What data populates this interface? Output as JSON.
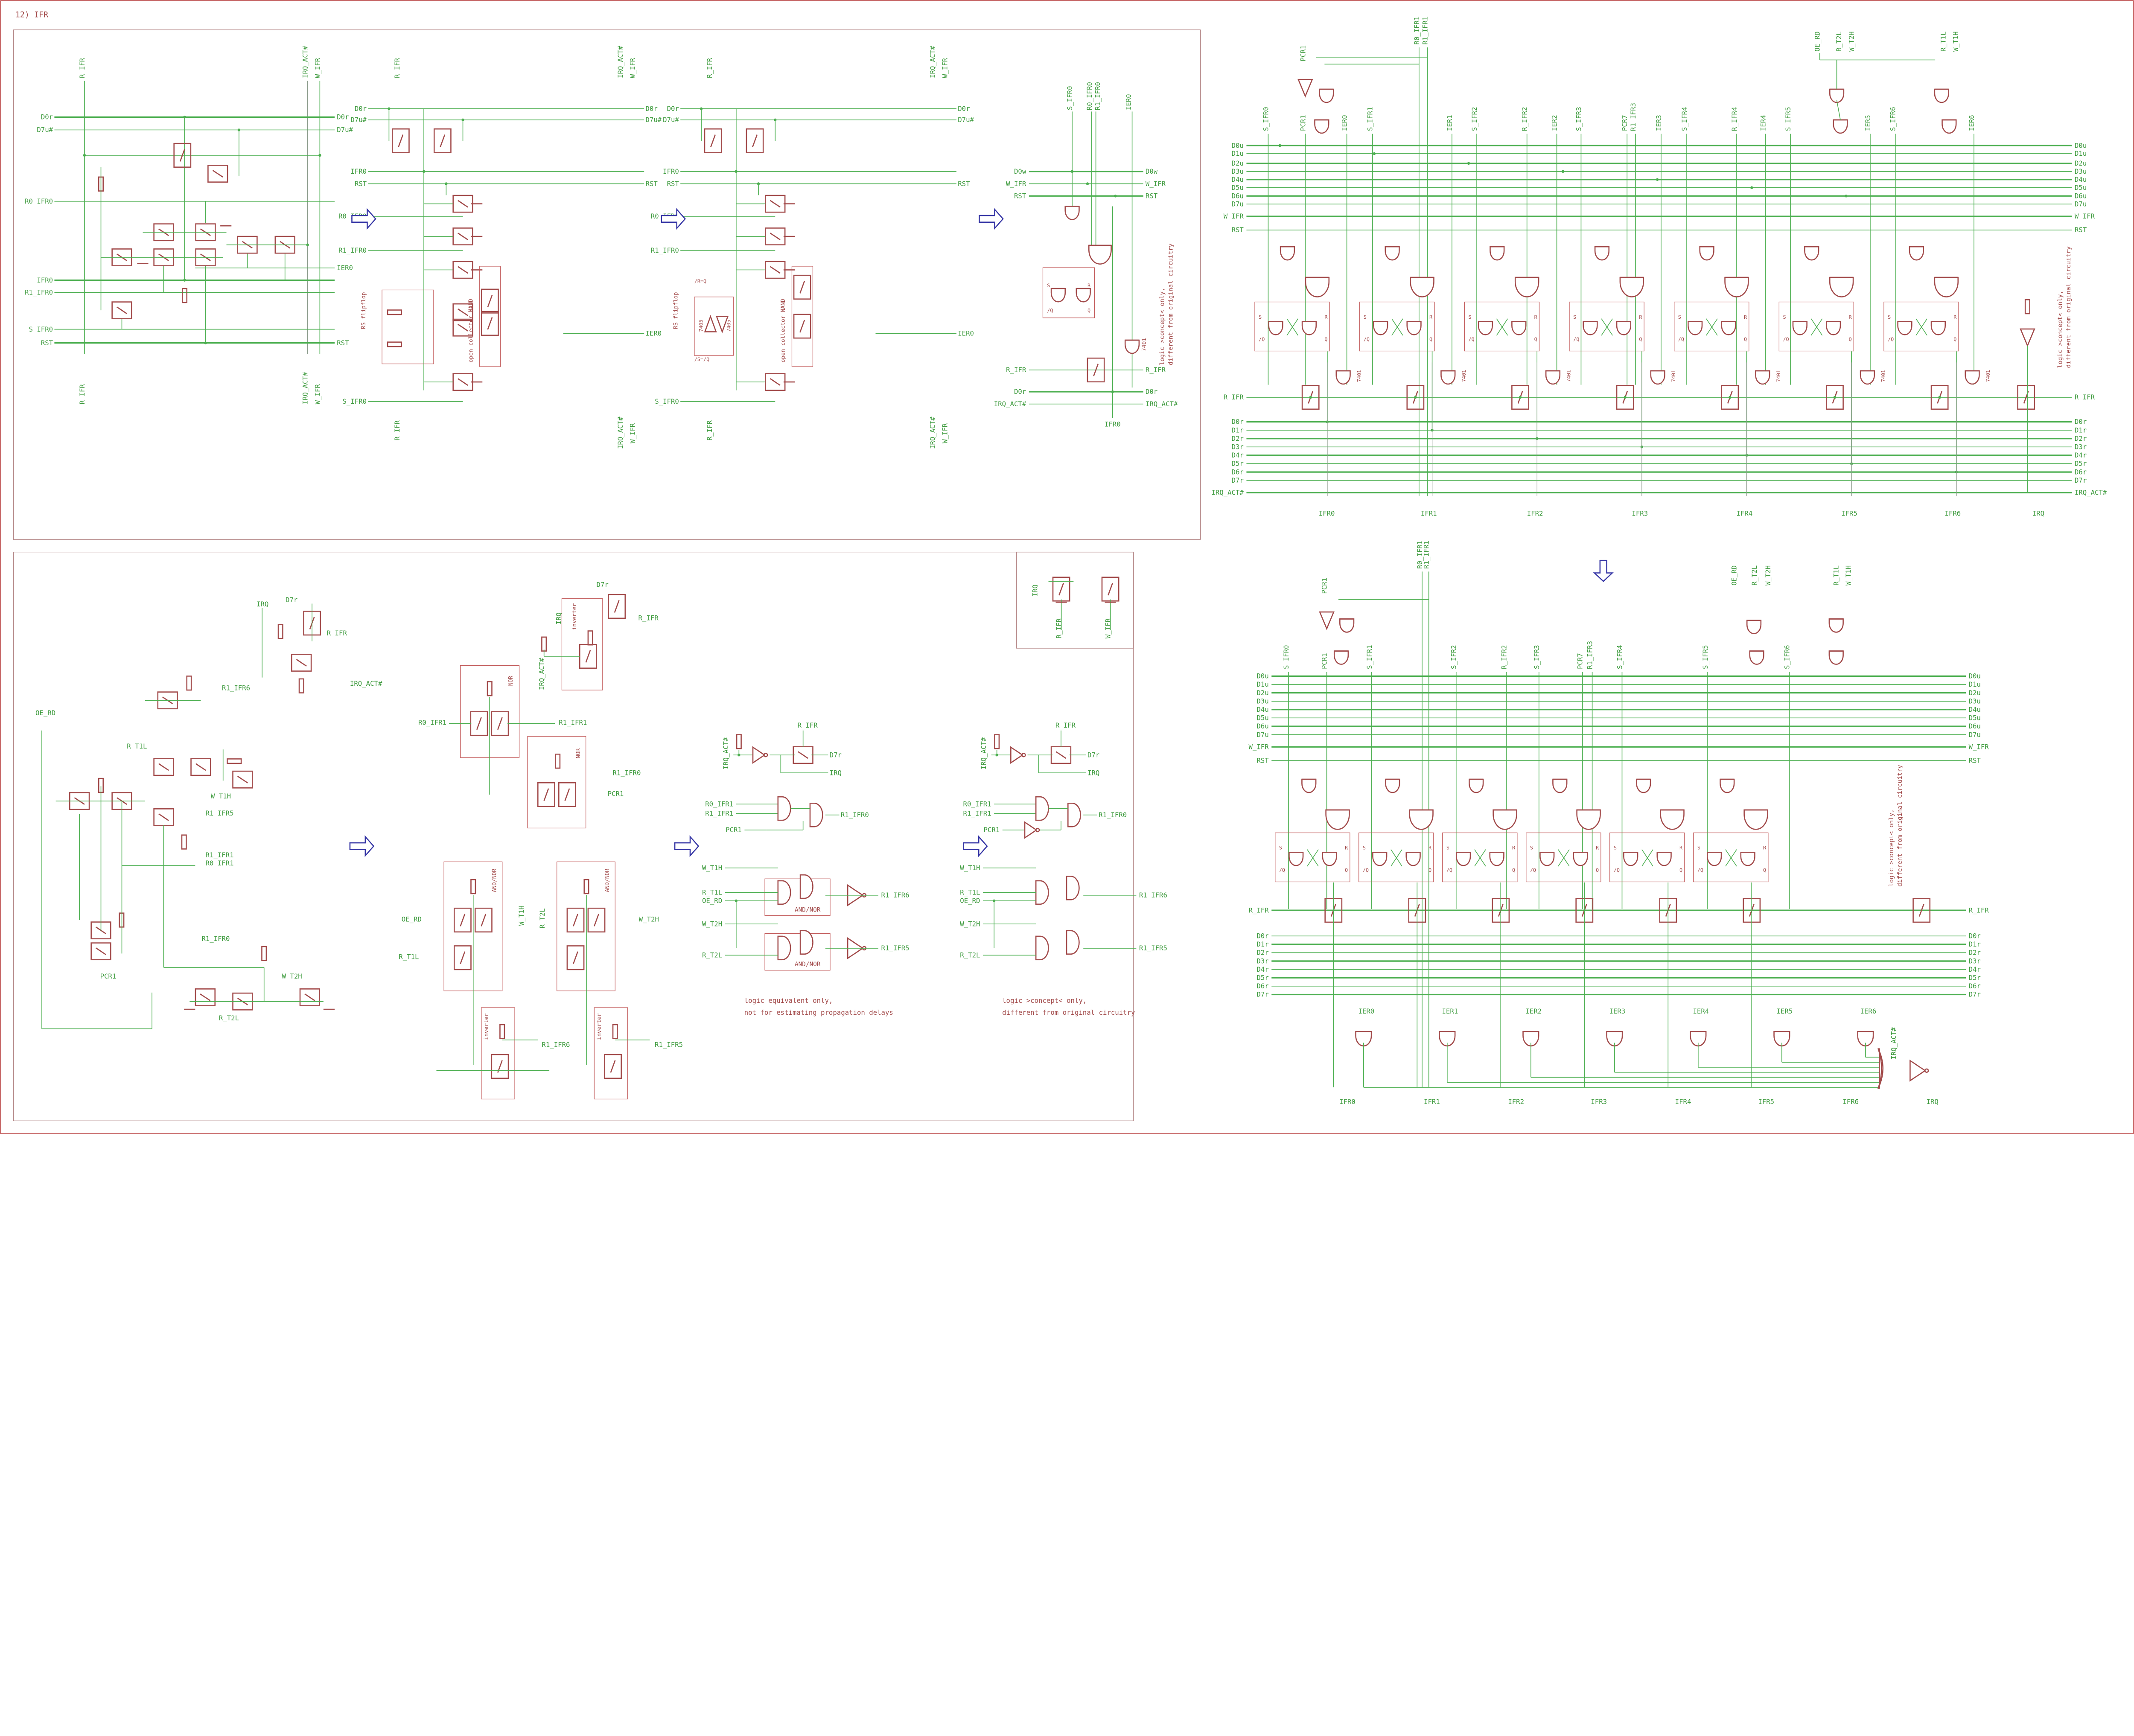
{
  "title": "12) IFR",
  "colors": {
    "wire": "#4caf50",
    "component": "#a24a4a",
    "frame": "#c25a5a",
    "arrow": "#3535a5",
    "label": "#3c9a3c"
  },
  "panel_a": {
    "labels": [
      "R_IFR",
      "IRQ_ACT#",
      "W_IFR",
      "D0r",
      "D7u#",
      "D0r",
      "D7u#",
      "R0_IFR0",
      "IER0",
      "IFR0",
      "R1_IFR0",
      "S_IFR0",
      "RST",
      "RST",
      "R_IFR",
      "IRQ_ACT#",
      "W_IFR"
    ]
  },
  "panel_b": {
    "labels": [
      "R_IFR",
      "IRQ_ACT#",
      "W_IFR",
      "D0r",
      "D7u#",
      "D0r",
      "D7u#",
      "IFR0",
      "RST",
      "RST",
      "R0_IFR0",
      "R1_IFR0",
      "IER0",
      "S_IFR0",
      "R_IFR",
      "IRQ_ACT#",
      "W_IFR"
    ],
    "box_labels": [
      "RS flipflop",
      "open collector NAND"
    ]
  },
  "panel_c": {
    "labels": [
      "R_IFR",
      "IRQ_ACT#",
      "W_IFR",
      "D0r",
      "D7u#",
      "D0r",
      "D7u#",
      "IFR0",
      "RST",
      "RST",
      "R0_IFR0",
      "R1_IFR0",
      "IER0",
      "S_IFR0",
      "R_IFR",
      "IRQ_ACT#",
      "W_IFR"
    ],
    "box_labels": [
      "RS flipflop",
      "open collector NAND",
      "/R=Q",
      "/S=/Q",
      "7405",
      "7405"
    ]
  },
  "panel_d": {
    "labels": [
      "S_IFR0",
      "R0_IFR0",
      "R1_IFR0",
      "IER0",
      "D0w",
      "D0w",
      "W_IFR",
      "W_IFR",
      "RST",
      "RST",
      "R_IFR",
      "R_IFR",
      "D0r",
      "D0r",
      "IRQ_ACT#",
      "IRQ_ACT#",
      "IFR0"
    ],
    "ff_labels": [
      "S",
      "R",
      "/Q",
      "Q"
    ],
    "gate_label": "7401",
    "note": [
      "logic >concept< only,",
      "different from original circuitry"
    ]
  },
  "top_right": {
    "top_labels": [
      "PCR1",
      "R0_IFR1",
      "R1_IFR1",
      "OE_RD",
      "R_T2L",
      "W_T2H",
      "R_T1L",
      "W_T1H"
    ],
    "column_labels": [
      "S_IFR0",
      "PCR1",
      "IER0",
      "S_IFR1",
      "IER1",
      "S_IFR2",
      "R_IFR2",
      "IER2",
      "S_IFR3",
      "PCR7",
      "R1_IFR3",
      "IER3",
      "S_IFR4",
      "R_IFR4",
      "IER4",
      "S_IFR5",
      "IER5",
      "S_IFR6",
      "IER6"
    ],
    "bus_top": [
      "D0u",
      "D1u",
      "D2u",
      "D3u",
      "D4u",
      "D5u",
      "D6u",
      "D7u",
      "W_IFR",
      "RST"
    ],
    "bus_bottom": [
      "R_IFR",
      "D0r",
      "D1r",
      "D2r",
      "D3r",
      "D4r",
      "D5r",
      "D6r",
      "D7r",
      "IRQ_ACT#"
    ],
    "bottom_labels": [
      "IFR0",
      "IFR1",
      "IFR2",
      "IFR3",
      "IFR4",
      "IFR5",
      "IFR6",
      "IRQ"
    ],
    "ff_labels": [
      "S",
      "R",
      "/Q",
      "Q"
    ],
    "gate_label": "7401",
    "note": [
      "logic >concept< only,",
      "different from original circuitry"
    ]
  },
  "bottom_right": {
    "top_labels": [
      "PCR1",
      "R0_IFR1",
      "R1_IFR1",
      "OE_RD",
      "R_T2L",
      "W_T2H",
      "R_T1L",
      "W_T1H"
    ],
    "column_labels": [
      "S_IFR0",
      "PCR1",
      "S_IFR1",
      "S_IFR2",
      "R_IFR2",
      "S_IFR3",
      "PCR7",
      "R1_IFR3",
      "S_IFR4",
      "S_IFR5",
      "S_IFR6"
    ],
    "bus_top": [
      "D0u",
      "D1u",
      "D2u",
      "D3u",
      "D4u",
      "D5u",
      "D6u",
      "D7u",
      "W_IFR",
      "RST"
    ],
    "bus_bottom": [
      "R_IFR",
      "D0r",
      "D1r",
      "D2r",
      "D3r",
      "D4r",
      "D5r",
      "D6r",
      "D7r"
    ],
    "ier_labels": [
      "IER0",
      "IER1",
      "IER2",
      "IER3",
      "IER4",
      "IER5",
      "IER6"
    ],
    "bottom_labels": [
      "IFR0",
      "IFR1",
      "IFR2",
      "IFR3",
      "IFR4",
      "IFR5",
      "IFR6",
      "IRQ"
    ],
    "or_label": "IRQ_ACT#",
    "ff_labels": [
      "S",
      "R",
      "/Q",
      "Q"
    ],
    "note": [
      "logic >concept< only,",
      "different from original circuitry"
    ]
  },
  "bottom_1": {
    "labels": [
      "IRQ",
      "D7r",
      "R_IFR",
      "IRQ_ACT#",
      "R1_IFR6",
      "OE_RD",
      "R_T1L",
      "W_T1H",
      "R1_IFR5",
      "R1_IFR1",
      "R0_IFR1",
      "R1_IFR0",
      "PCR1",
      "W_T2H",
      "R_T2L"
    ]
  },
  "bottom_2": {
    "labels": [
      "R0_IFR1",
      "R1_IFR1",
      "R1_IFR0",
      "PCR1",
      "IRQ",
      "D7r",
      "R_IFR",
      "IRQ_ACT#",
      "OE_RD",
      "R_T1L",
      "W_T1H",
      "R_T2L",
      "W_T2H",
      "R1_IFR6",
      "R1_IFR5"
    ],
    "box_labels": [
      "NOR",
      "NOR",
      "inverter",
      "AND/NOR",
      "AND/NOR",
      "inverter",
      "inverter"
    ]
  },
  "bottom_3": {
    "labels": [
      "IRQ_ACT#",
      "R_IFR",
      "D7r",
      "IRQ",
      "R0_IFR1",
      "R1_IFR1",
      "PCR1",
      "R1_IFR0",
      "W_T1H",
      "R_T1L",
      "OE_RD",
      "W_T2H",
      "R_T2L",
      "R1_IFR6",
      "R1_IFR5"
    ],
    "box_labels": [
      "AND/NOR",
      "AND/NOR"
    ],
    "note": [
      "logic equivalent only,",
      "not for estimating propagation delays"
    ]
  },
  "bottom_4": {
    "labels": [
      "IRQ_ACT#",
      "R_IFR",
      "D7r",
      "IRQ",
      "R0_IFR1",
      "R1_IFR1",
      "PCR1",
      "R1_IFR0",
      "W_T1H",
      "R_T1L",
      "OE_RD",
      "W_T2H",
      "R_T2L",
      "R1_IFR6",
      "R1_IFR5"
    ],
    "note": [
      "logic >concept< only,",
      "different from original circuitry"
    ]
  },
  "corner_box": {
    "labels": [
      "IRQ",
      "R_IFR",
      "W_IFR"
    ]
  }
}
